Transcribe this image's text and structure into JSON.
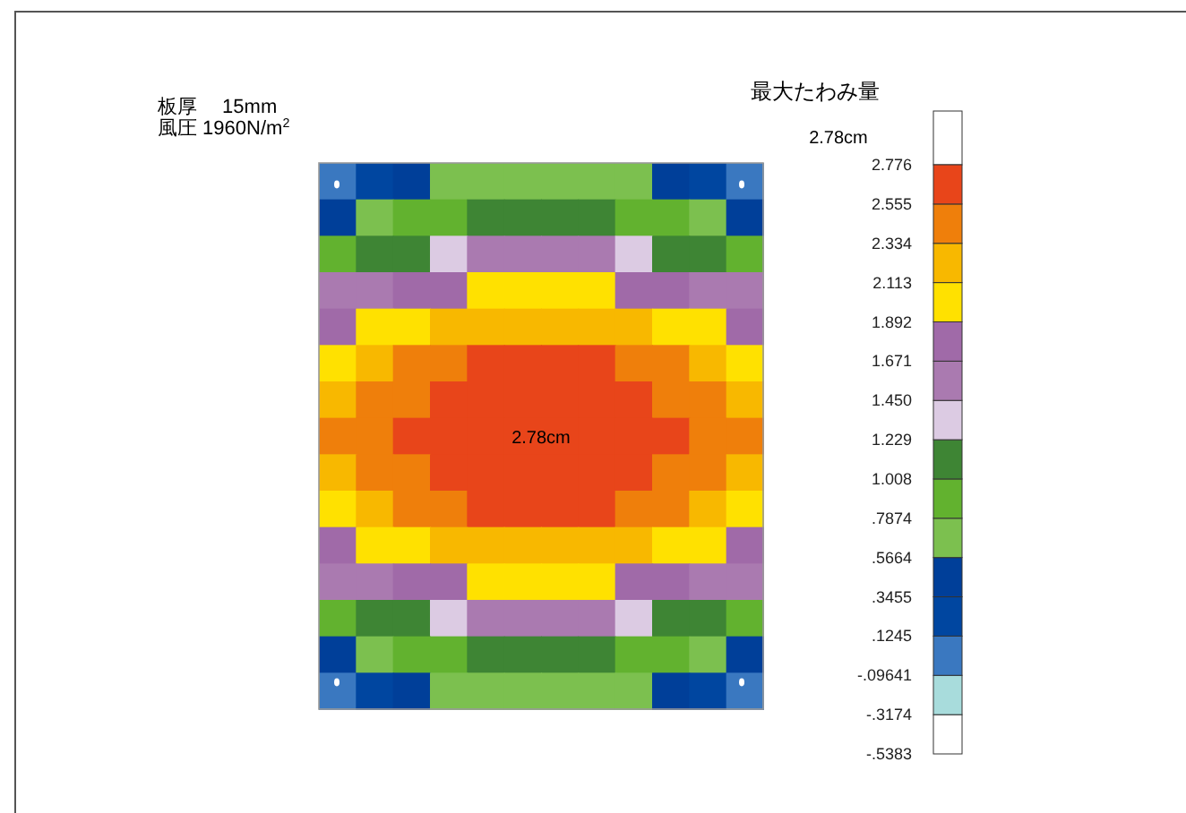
{
  "chart_data": {
    "type": "heatmap",
    "title": "最大たわみ量",
    "subtitle": "2.78cm",
    "annotations": [
      "板厚　 15mm",
      "風圧 1960N/m$^{2}$",
      "2.78cm"
    ],
    "categories": [
      null,
      null,
      null,
      null,
      null,
      null,
      null,
      null,
      null,
      null,
      null,
      null
    ],
    "y_categories": [
      null,
      null,
      null,
      null,
      null,
      null,
      null,
      null,
      null,
      null,
      null,
      null,
      null,
      null,
      null
    ],
    "cells": [
      [
        0.01,
        0.24,
        0.46,
        0.68,
        0.68,
        0.68,
        0.68,
        0.68,
        0.68,
        0.46,
        0.24,
        0.01
      ],
      [
        0.46,
        0.68,
        0.9,
        0.9,
        1.12,
        1.12,
        1.12,
        1.12,
        0.9,
        0.9,
        0.68,
        0.46
      ],
      [
        0.9,
        1.12,
        1.12,
        1.34,
        1.56,
        1.56,
        1.56,
        1.56,
        1.34,
        1.12,
        1.12,
        0.9
      ],
      [
        1.56,
        1.56,
        1.78,
        1.78,
        2.0,
        2.0,
        2.0,
        2.0,
        1.78,
        1.78,
        1.56,
        1.56
      ],
      [
        1.78,
        2.0,
        2.0,
        2.22,
        2.22,
        2.22,
        2.22,
        2.22,
        2.22,
        2.0,
        2.0,
        1.78
      ],
      [
        2.0,
        2.22,
        2.45,
        2.45,
        2.67,
        2.67,
        2.67,
        2.67,
        2.45,
        2.45,
        2.22,
        2.0
      ],
      [
        2.22,
        2.45,
        2.45,
        2.67,
        2.67,
        2.67,
        2.67,
        2.67,
        2.67,
        2.45,
        2.45,
        2.22
      ],
      [
        2.45,
        2.45,
        2.67,
        2.67,
        2.67,
        2.67,
        2.67,
        2.67,
        2.67,
        2.67,
        2.45,
        2.45
      ],
      [
        2.22,
        2.45,
        2.45,
        2.67,
        2.67,
        2.67,
        2.67,
        2.67,
        2.67,
        2.45,
        2.45,
        2.22
      ],
      [
        2.0,
        2.22,
        2.45,
        2.45,
        2.67,
        2.67,
        2.67,
        2.67,
        2.45,
        2.45,
        2.22,
        2.0
      ],
      [
        1.78,
        2.0,
        2.0,
        2.22,
        2.22,
        2.22,
        2.22,
        2.22,
        2.22,
        2.0,
        2.0,
        1.78
      ],
      [
        1.56,
        1.56,
        1.78,
        1.78,
        2.0,
        2.0,
        2.0,
        2.0,
        1.78,
        1.78,
        1.56,
        1.56
      ],
      [
        0.9,
        1.12,
        1.12,
        1.34,
        1.56,
        1.56,
        1.56,
        1.56,
        1.34,
        1.12,
        1.12,
        0.9
      ],
      [
        0.46,
        0.68,
        0.9,
        0.9,
        1.12,
        1.12,
        1.12,
        1.12,
        0.9,
        0.9,
        0.68,
        0.46
      ],
      [
        0.01,
        0.24,
        0.46,
        0.68,
        0.68,
        0.68,
        0.68,
        0.68,
        0.68,
        0.46,
        0.24,
        0.01
      ]
    ],
    "colors": [
      "#ffffff",
      "#a8dcdc",
      "#3a78c0",
      "#0046a0",
      "#003f99",
      "#7cc04f",
      "#62b22f",
      "#3e8534",
      "#dccbe3",
      "#aa7ab0",
      "#a06aa8",
      "#ffe100",
      "#f8b800",
      "#ef7f0b",
      "#e8451a"
    ],
    "clim": [
      -0.5383,
      2.776
    ],
    "cticks": [
      {
        "value": -0.5383,
        "label": "-.5383"
      },
      {
        "value": -0.3174,
        "label": "-.3174"
      },
      {
        "value": -0.09641,
        "label": "-.09641"
      },
      {
        "value": 0.1245,
        "label": ".1245"
      },
      {
        "value": 0.3455,
        "label": ".3455"
      },
      {
        "value": 0.5664,
        "label": ".5664"
      },
      {
        "value": 0.7874,
        "label": ".7874"
      },
      {
        "value": 1.008,
        "label": "1.008"
      },
      {
        "value": 1.229,
        "label": "1.229"
      },
      {
        "value": 1.45,
        "label": "1.450"
      },
      {
        "value": 1.671,
        "label": "1.671"
      },
      {
        "value": 1.892,
        "label": "1.892"
      },
      {
        "value": 2.113,
        "label": "2.113"
      },
      {
        "value": 2.334,
        "label": "2.334"
      },
      {
        "value": 2.555,
        "label": "2.555"
      },
      {
        "value": 2.776,
        "label": "2.776"
      }
    ]
  }
}
